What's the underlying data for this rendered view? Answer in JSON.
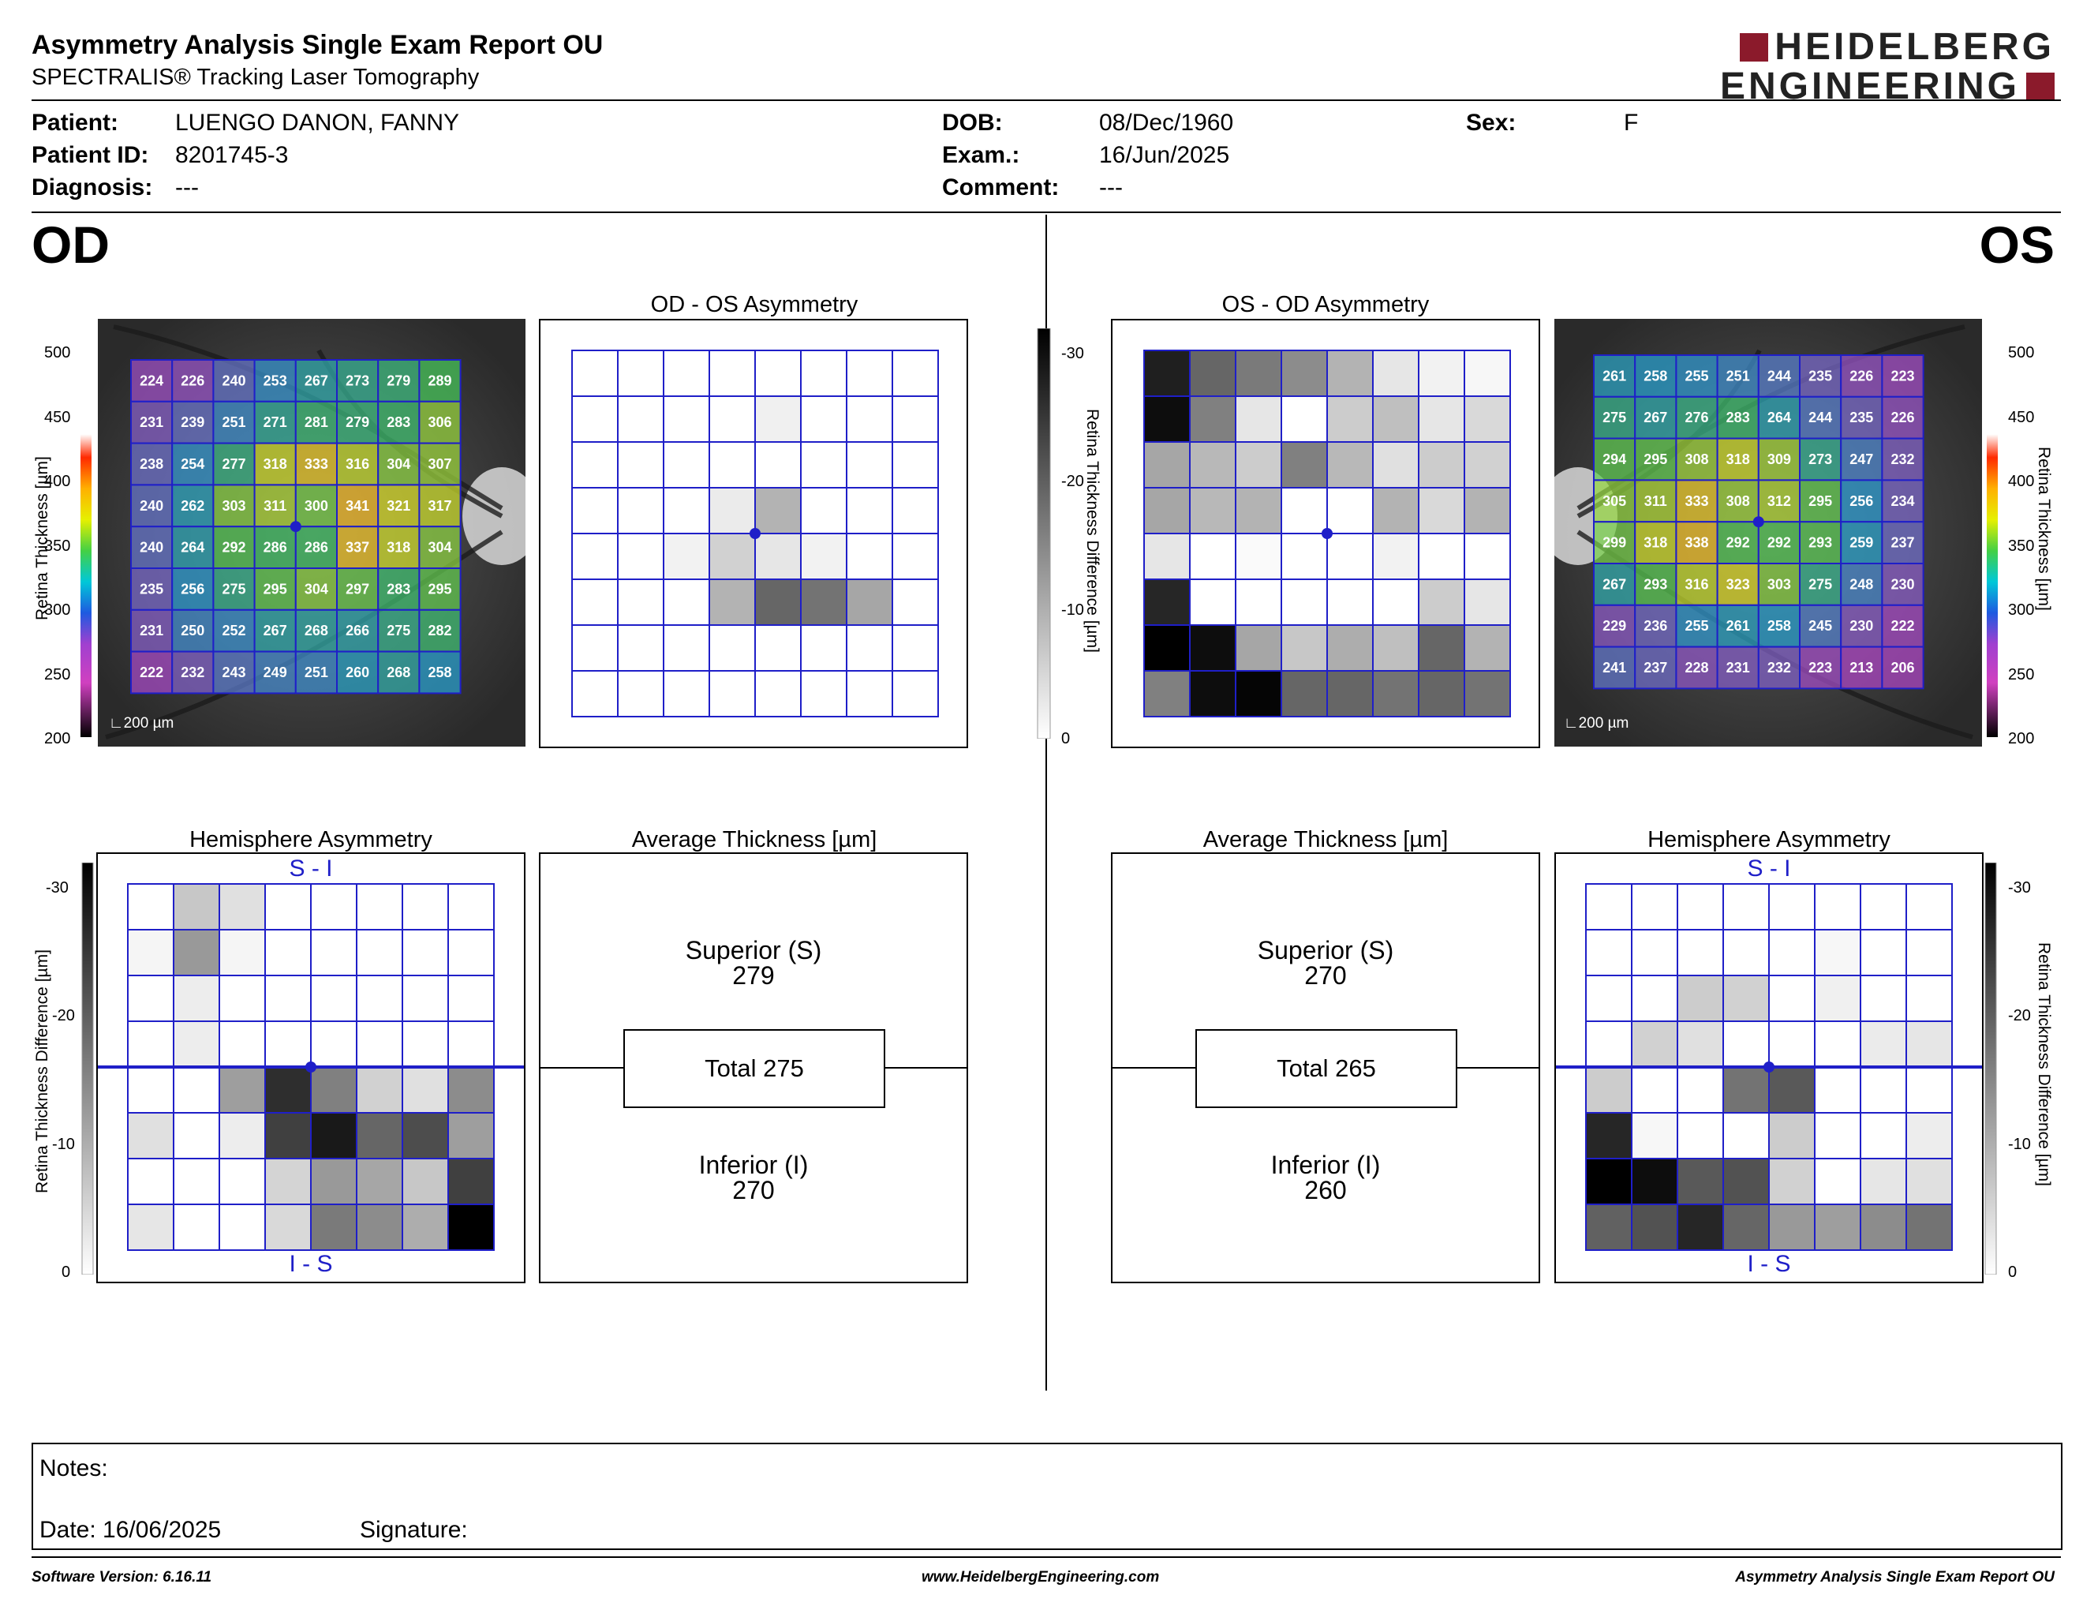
{
  "header": {
    "title": "Asymmetry Analysis Single Exam Report OU",
    "subtitle": "SPECTRALIS® Tracking Laser Tomography",
    "logo_line1": "HEIDELBERG",
    "logo_line2": "ENGINEERING"
  },
  "patient": {
    "patient_label": "Patient:",
    "patient_value": "LUENGO DANON, FANNY",
    "id_label": "Patient ID:",
    "id_value": "8201745-3",
    "diagnosis_label": "Diagnosis:",
    "diagnosis_value": "---",
    "dob_label": "DOB:",
    "dob_value": "08/Dec/1960",
    "exam_label": "Exam.:",
    "exam_value": "16/Jun/2025",
    "comment_label": "Comment:",
    "comment_value": "---",
    "sex_label": "Sex:",
    "sex_value": "F"
  },
  "eyes": {
    "od": "OD",
    "os": "OS"
  },
  "titles": {
    "od_os_asym": "OD - OS Asymmetry",
    "os_od_asym": "OS - OD Asymmetry",
    "hemi": "Hemisphere Asymmetry",
    "avg": "Average Thickness [µm]"
  },
  "scales": {
    "thickness_ticks": [
      "500",
      "450",
      "400",
      "350",
      "300",
      "250",
      "200"
    ],
    "thickness_label": "Retina Thickness [µm]",
    "diff_ticks": [
      "-30",
      "-20",
      "-10",
      "0"
    ],
    "diff_label": "Retina Thickness Difference [µm]",
    "scale_bar": "200 µm"
  },
  "colors": {
    "grid": "#1f1fc8",
    "brand": "#8b1a2b"
  },
  "od": {
    "thickness": [
      [
        "224",
        "226",
        "240",
        "253",
        "267",
        "273",
        "279",
        "289"
      ],
      [
        "231",
        "239",
        "251",
        "271",
        "281",
        "279",
        "283",
        "306"
      ],
      [
        "238",
        "254",
        "277",
        "318",
        "333",
        "316",
        "304",
        "307"
      ],
      [
        "240",
        "262",
        "303",
        "311",
        "300",
        "341",
        "321",
        "317"
      ],
      [
        "240",
        "264",
        "292",
        "286",
        "286",
        "337",
        "318",
        "304"
      ],
      [
        "235",
        "256",
        "275",
        "295",
        "304",
        "297",
        "283",
        "295"
      ],
      [
        "231",
        "250",
        "252",
        "267",
        "268",
        "266",
        "275",
        "282"
      ],
      [
        "222",
        "232",
        "243",
        "249",
        "251",
        "260",
        "268",
        "258"
      ]
    ],
    "asym_gray": [
      [
        0,
        0,
        0,
        0,
        0,
        0,
        0,
        0
      ],
      [
        0,
        0,
        0,
        0,
        0.06,
        0,
        0,
        0
      ],
      [
        0,
        0,
        0,
        0,
        0,
        0,
        0,
        0
      ],
      [
        0,
        0,
        0,
        0.08,
        0.3,
        0,
        0,
        0
      ],
      [
        0,
        0,
        0.05,
        0.18,
        0.1,
        0.05,
        0,
        0
      ],
      [
        0,
        0,
        0,
        0.3,
        0.6,
        0.55,
        0.35,
        0
      ],
      [
        0,
        0,
        0,
        0,
        0,
        0,
        0,
        0
      ],
      [
        0,
        0,
        0,
        0,
        0,
        0,
        0,
        0
      ]
    ],
    "hemi_gray": [
      [
        0,
        0.22,
        0.12,
        0,
        0,
        0,
        0,
        0
      ],
      [
        0.04,
        0.4,
        0.04,
        0,
        0,
        0,
        0,
        0
      ],
      [
        0,
        0.07,
        0,
        0,
        0,
        0,
        0,
        0
      ],
      [
        0,
        0.07,
        0,
        0,
        0,
        0,
        0,
        0
      ],
      [
        0,
        0,
        0.38,
        0.82,
        0.5,
        0.18,
        0.12,
        0.45
      ],
      [
        0.12,
        0,
        0.07,
        0.75,
        0.9,
        0.6,
        0.7,
        0.38
      ],
      [
        0,
        0,
        0,
        0.17,
        0.4,
        0.35,
        0.22,
        0.75
      ],
      [
        0.1,
        0,
        0,
        0.15,
        0.52,
        0.45,
        0.32,
        1.0
      ]
    ],
    "hemi_top": "S - I",
    "hemi_bottom": "I - S",
    "superior_label": "Superior (S)",
    "superior_value": "279",
    "total": "Total 275",
    "inferior_label": "Inferior (I)",
    "inferior_value": "270"
  },
  "os": {
    "thickness": [
      [
        "261",
        "258",
        "255",
        "251",
        "244",
        "235",
        "226",
        "223"
      ],
      [
        "275",
        "267",
        "276",
        "283",
        "264",
        "244",
        "235",
        "226"
      ],
      [
        "294",
        "295",
        "308",
        "318",
        "309",
        "273",
        "247",
        "232"
      ],
      [
        "305",
        "311",
        "333",
        "308",
        "312",
        "295",
        "256",
        "234"
      ],
      [
        "299",
        "318",
        "338",
        "292",
        "292",
        "293",
        "259",
        "237"
      ],
      [
        "267",
        "293",
        "316",
        "323",
        "303",
        "275",
        "248",
        "230"
      ],
      [
        "229",
        "236",
        "255",
        "261",
        "258",
        "245",
        "230",
        "222"
      ],
      [
        "241",
        "237",
        "228",
        "231",
        "232",
        "223",
        "213",
        "206"
      ]
    ],
    "asym_gray": [
      [
        0.88,
        0.6,
        0.52,
        0.45,
        0.3,
        0.1,
        0.05,
        0.03
      ],
      [
        0.95,
        0.5,
        0.1,
        0,
        0.2,
        0.25,
        0.1,
        0.15
      ],
      [
        0.35,
        0.28,
        0.2,
        0.5,
        0.28,
        0.12,
        0.2,
        0.18
      ],
      [
        0.35,
        0.28,
        0.3,
        0,
        0,
        0.3,
        0.15,
        0.3
      ],
      [
        0.1,
        0,
        0.02,
        0,
        0,
        0.05,
        0,
        0
      ],
      [
        0.85,
        0,
        0,
        0,
        0,
        0,
        0.2,
        0.1
      ],
      [
        1.0,
        0.95,
        0.35,
        0.22,
        0.32,
        0.25,
        0.6,
        0.3
      ],
      [
        0.5,
        0.95,
        0.98,
        0.6,
        0.6,
        0.55,
        0.6,
        0.55
      ]
    ],
    "hemi_gray": [
      [
        0,
        0,
        0,
        0,
        0,
        0,
        0,
        0
      ],
      [
        0,
        0,
        0,
        0,
        0,
        0.03,
        0,
        0
      ],
      [
        0,
        0,
        0.2,
        0.18,
        0,
        0.06,
        0,
        0
      ],
      [
        0,
        0.18,
        0.12,
        0,
        0,
        0,
        0.08,
        0.1
      ],
      [
        0.2,
        0,
        0,
        0.55,
        0.65,
        0,
        0,
        0
      ],
      [
        0.85,
        0.03,
        0,
        0,
        0.2,
        0,
        0,
        0.07
      ],
      [
        1.0,
        0.95,
        0.65,
        0.68,
        0.18,
        0,
        0.1,
        0.12
      ],
      [
        0.62,
        0.68,
        0.85,
        0.6,
        0.4,
        0.38,
        0.45,
        0.55
      ]
    ],
    "hemi_top": "S - I",
    "hemi_bottom": "I - S",
    "superior_label": "Superior (S)",
    "superior_value": "270",
    "total": "Total 265",
    "inferior_label": "Inferior (I)",
    "inferior_value": "260"
  },
  "notes": {
    "notes_label": "Notes:",
    "date_label": "Date: 16/06/2025",
    "signature_label": "Signature:"
  },
  "footer": {
    "software": "Software Version: 6.16.11",
    "website": "www.HeidelbergEngineering.com",
    "report": "Asymmetry Analysis Single Exam Report OU"
  }
}
